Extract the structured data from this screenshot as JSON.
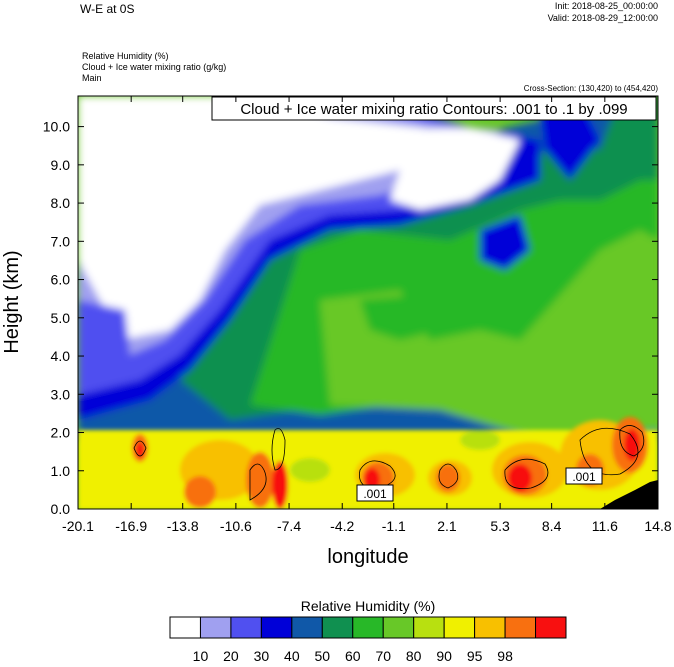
{
  "header": {
    "title": "W-E at 0S",
    "init": "Init: 2018-08-25_00:00:00",
    "valid": "Valid: 2018-08-29_12:00:00",
    "fields": [
      "Relative Humidity   (%)",
      "Cloud + Ice water mixing ratio   (g/kg)",
      "Main"
    ],
    "cross_section": "Cross-Section: (130,420) to (454,420)"
  },
  "chart_data": {
    "type": "heatmap",
    "contour_label": "Cloud + Ice water mixing ratio Contours: .001 to .1 by .099",
    "xlabel": "longitude",
    "ylabel": "Height (km)",
    "xlim": [
      -20.1,
      14.8
    ],
    "ylim": [
      0.0,
      10.8
    ],
    "x_ticks": [
      "-20.1",
      "-16.9",
      "-13.8",
      "-10.6",
      "-7.4",
      "-4.2",
      "-1.1",
      "2.1",
      "5.3",
      "8.4",
      "11.6",
      "14.8"
    ],
    "y_ticks": [
      "0.0",
      "1.0",
      "2.0",
      "3.0",
      "4.0",
      "5.0",
      "6.0",
      "7.0",
      "8.0",
      "9.0",
      "10.0"
    ],
    "contour_value_labels": [
      ".001",
      ".001"
    ],
    "colorbar": {
      "title": "Relative Humidity  (%)",
      "labels": [
        "10",
        "20",
        "30",
        "40",
        "50",
        "60",
        "70",
        "80",
        "90",
        "95",
        "98"
      ],
      "colors": [
        "#ffffff",
        "#a0a0f0",
        "#5050f0",
        "#0000d8",
        "#1058a8",
        "#109050",
        "#28b828",
        "#68c828",
        "#b8e010",
        "#f0f000",
        "#f8c000",
        "#f87010",
        "#f81010"
      ]
    }
  }
}
